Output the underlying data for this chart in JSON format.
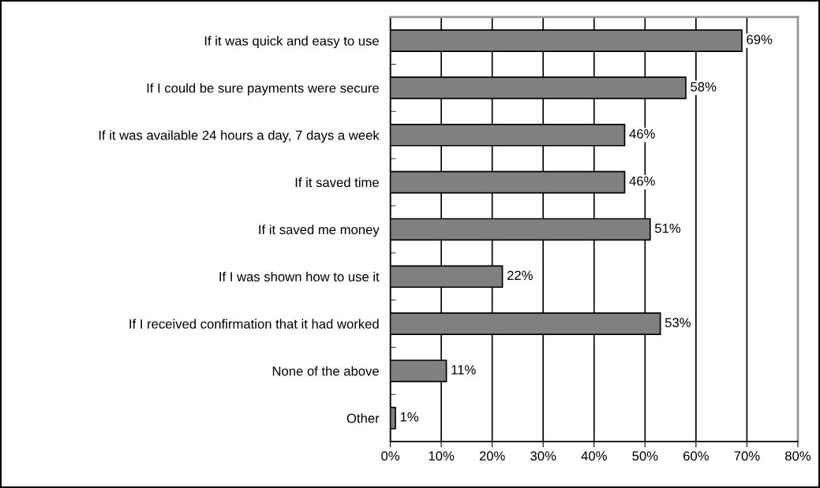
{
  "chart_data": {
    "type": "bar",
    "orientation": "horizontal",
    "categories": [
      "If it was quick and easy to use",
      "If I could be sure payments were secure",
      "If it was available 24 hours a day, 7 days a week",
      "If it saved time",
      "If it saved me money",
      "If I was shown how to use it",
      "If I received confirmation that it had worked",
      "None of the above",
      "Other"
    ],
    "values": [
      69,
      58,
      46,
      46,
      51,
      22,
      53,
      11,
      1
    ],
    "value_labels": [
      "69%",
      "58%",
      "46%",
      "46%",
      "51%",
      "22%",
      "53%",
      "11%",
      "1%"
    ],
    "color": "#808080",
    "xlim": [
      0,
      80
    ],
    "xticks": [
      {
        "value": 0,
        "label": "0%"
      },
      {
        "value": 10,
        "label": "10%"
      },
      {
        "value": 20,
        "label": "20%"
      },
      {
        "value": 30,
        "label": "30%"
      },
      {
        "value": 40,
        "label": "40%"
      },
      {
        "value": 50,
        "label": "50%"
      },
      {
        "value": 60,
        "label": "60%"
      },
      {
        "value": 70,
        "label": "70%"
      },
      {
        "value": 80,
        "label": "80%"
      }
    ],
    "grid": "x"
  }
}
